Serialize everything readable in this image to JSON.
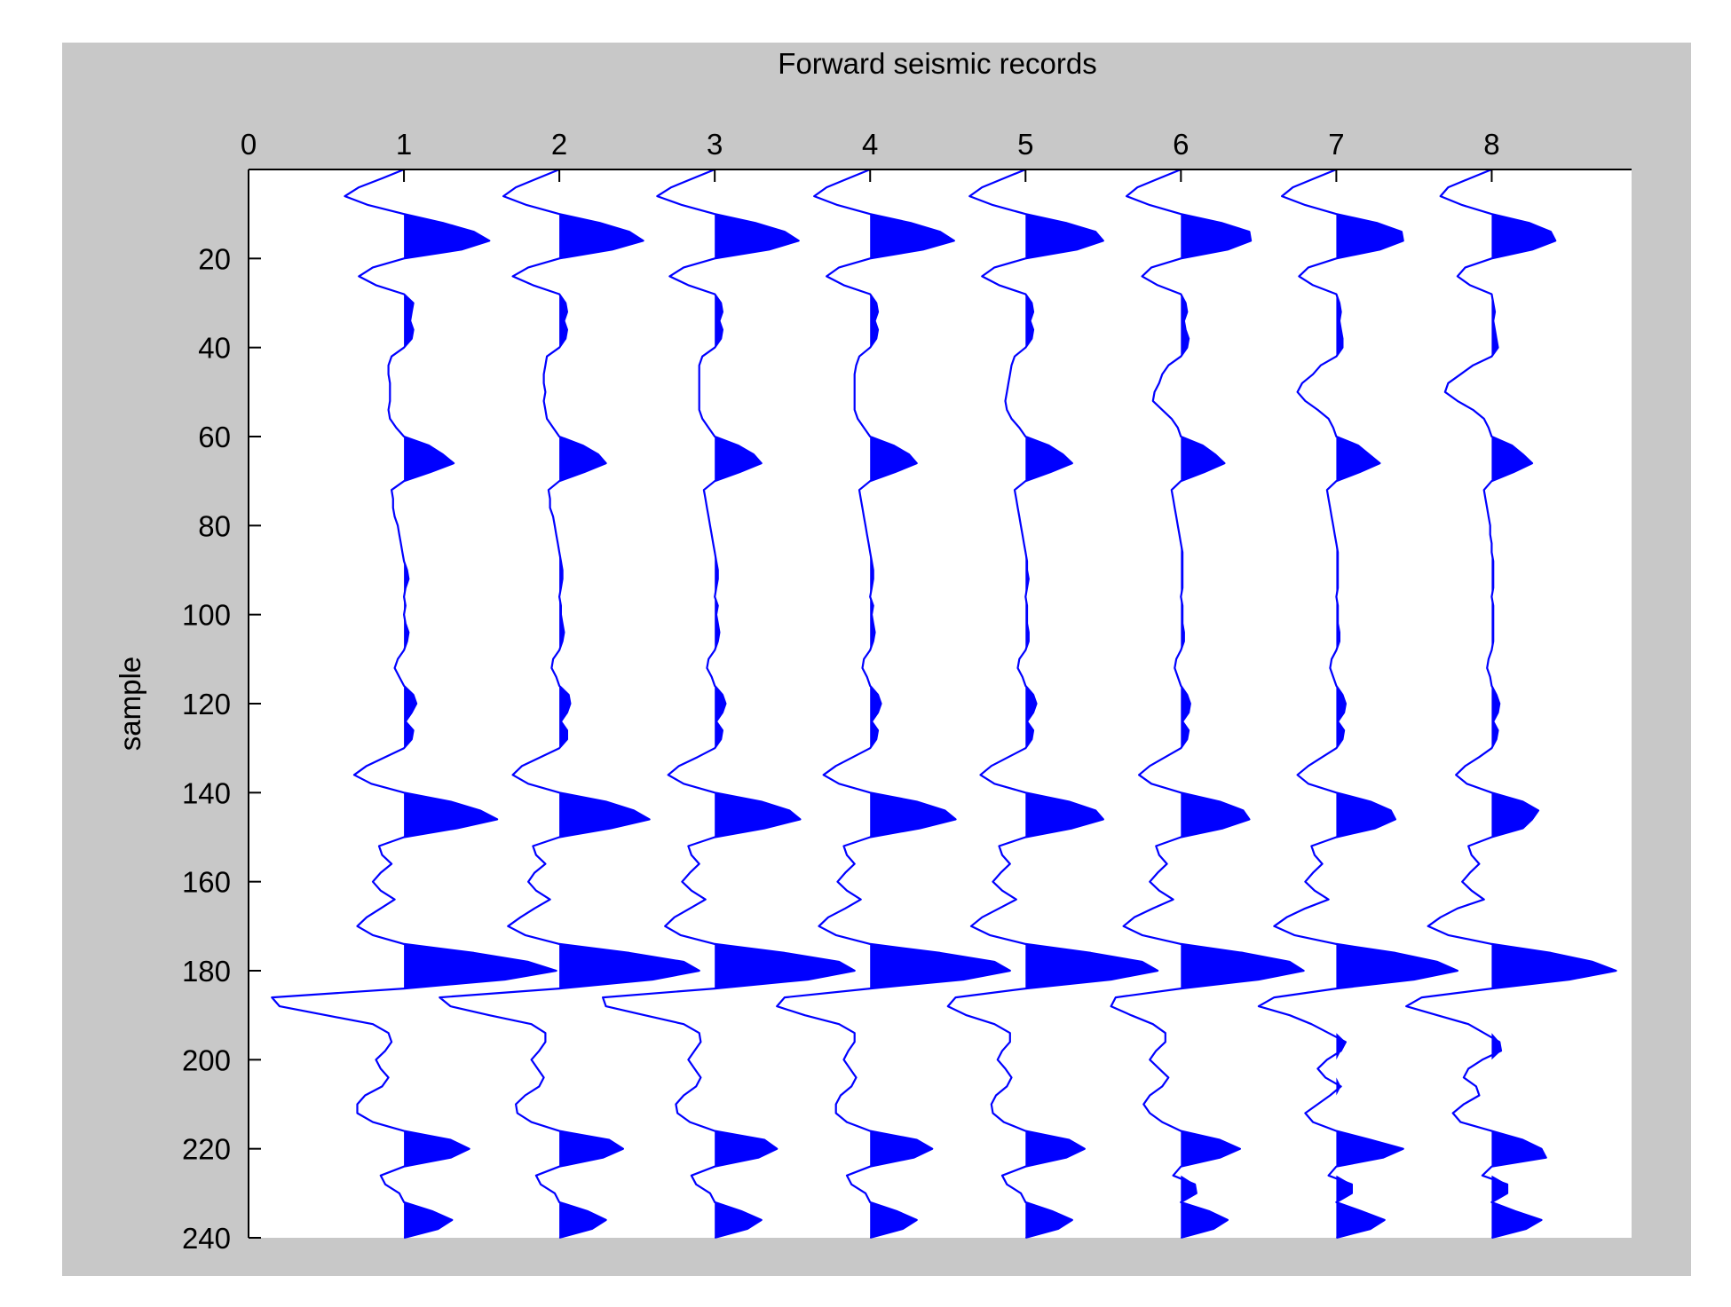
{
  "chart_data": {
    "type": "line",
    "title": "Forward seismic records",
    "xlabel": "",
    "ylabel": "sample",
    "x_axis_position": "top",
    "y_direction": "reversed",
    "xlim": [
      0,
      8.9
    ],
    "ylim": [
      0,
      240
    ],
    "xticks": [
      0,
      1,
      2,
      3,
      4,
      5,
      6,
      7,
      8
    ],
    "yticks": [
      20,
      40,
      60,
      80,
      100,
      120,
      140,
      160,
      180,
      200,
      220,
      240
    ],
    "grid": false,
    "legend": "none",
    "fill": "positive lobes filled (wiggle-variable-area)",
    "colors": {
      "trace": "#0000ff",
      "figure_background": "#c8c8c8",
      "axes_background": "#ffffff",
      "axes": "#000000"
    },
    "trace_offsets": [
      1,
      2,
      3,
      4,
      5,
      6,
      7,
      8
    ],
    "sample_axis": [
      0,
      2,
      4,
      6,
      8,
      10,
      12,
      14,
      16,
      18,
      20,
      22,
      24,
      26,
      28,
      30,
      32,
      34,
      36,
      38,
      40,
      42,
      44,
      46,
      48,
      50,
      52,
      54,
      56,
      58,
      60,
      62,
      64,
      66,
      68,
      70,
      72,
      74,
      76,
      78,
      80,
      82,
      84,
      86,
      88,
      90,
      92,
      94,
      96,
      98,
      100,
      102,
      104,
      106,
      108,
      110,
      112,
      114,
      116,
      118,
      120,
      122,
      124,
      126,
      128,
      130,
      132,
      134,
      136,
      138,
      140,
      142,
      144,
      146,
      148,
      150,
      152,
      154,
      156,
      158,
      160,
      162,
      164,
      166,
      168,
      170,
      172,
      174,
      176,
      178,
      180,
      182,
      184,
      186,
      188,
      190,
      192,
      194,
      196,
      198,
      200,
      202,
      204,
      206,
      208,
      210,
      212,
      214,
      216,
      218,
      220,
      222,
      224,
      226,
      228,
      230,
      232,
      234,
      236,
      238,
      240
    ],
    "series": [
      {
        "values": [
          0,
          -0.14,
          -0.29,
          -0.38,
          -0.23,
          0,
          0.25,
          0.45,
          0.55,
          0.37,
          0,
          -0.2,
          -0.29,
          -0.18,
          0,
          0.06,
          0.05,
          0.04,
          0.06,
          0.05,
          0,
          -0.08,
          -0.1,
          -0.1,
          -0.09,
          -0.09,
          -0.09,
          -0.1,
          -0.09,
          -0.05,
          0,
          0.16,
          0.25,
          0.32,
          0.17,
          0,
          -0.08,
          -0.07,
          -0.07,
          -0.06,
          -0.04,
          -0.03,
          -0.02,
          -0.01,
          0,
          0.02,
          0.03,
          0.01,
          0,
          0.01,
          0,
          0.01,
          0.03,
          0.02,
          0,
          -0.04,
          -0.06,
          -0.03,
          0,
          0.06,
          0.08,
          0.05,
          0.01,
          0.06,
          0.05,
          0,
          -0.12,
          -0.24,
          -0.32,
          -0.21,
          0,
          0.3,
          0.49,
          0.6,
          0.34,
          0,
          -0.16,
          -0.14,
          -0.08,
          -0.15,
          -0.2,
          -0.15,
          -0.06,
          -0.15,
          -0.24,
          -0.3,
          -0.2,
          0,
          0.45,
          0.8,
          0.98,
          0.65,
          0,
          -0.85,
          -0.8,
          -0.5,
          -0.2,
          -0.1,
          -0.08,
          -0.12,
          -0.18,
          -0.15,
          -0.1,
          -0.14,
          -0.25,
          -0.3,
          -0.3,
          -0.2,
          0,
          0.3,
          0.42,
          0.3,
          0,
          -0.15,
          -0.12,
          -0.03,
          0,
          0.18,
          0.31,
          0.22,
          0
        ]
      },
      {
        "values": [
          0,
          -0.14,
          -0.28,
          -0.36,
          -0.21,
          0,
          0.26,
          0.45,
          0.54,
          0.34,
          0,
          -0.2,
          -0.3,
          -0.17,
          0,
          0.04,
          0.05,
          0.03,
          0.05,
          0.04,
          0,
          -0.08,
          -0.09,
          -0.1,
          -0.1,
          -0.09,
          -0.1,
          -0.09,
          -0.08,
          -0.04,
          0,
          0.15,
          0.25,
          0.3,
          0.16,
          0,
          -0.07,
          -0.06,
          -0.06,
          -0.04,
          -0.03,
          -0.02,
          -0.01,
          0,
          0.01,
          0.02,
          0.02,
          0.01,
          0,
          0.01,
          0.01,
          0.02,
          0.03,
          0.02,
          0,
          -0.04,
          -0.05,
          -0.02,
          0,
          0.06,
          0.07,
          0.05,
          0.01,
          0.05,
          0.05,
          0,
          -0.12,
          -0.24,
          -0.3,
          -0.2,
          0,
          0.3,
          0.48,
          0.58,
          0.33,
          0,
          -0.17,
          -0.15,
          -0.09,
          -0.16,
          -0.2,
          -0.15,
          -0.06,
          -0.16,
          -0.25,
          -0.33,
          -0.22,
          0,
          0.45,
          0.8,
          0.9,
          0.6,
          0,
          -0.77,
          -0.7,
          -0.45,
          -0.18,
          -0.09,
          -0.09,
          -0.13,
          -0.18,
          -0.14,
          -0.1,
          -0.13,
          -0.22,
          -0.28,
          -0.27,
          -0.18,
          0,
          0.32,
          0.41,
          0.28,
          0,
          -0.15,
          -0.12,
          -0.03,
          0,
          0.18,
          0.3,
          0.21,
          0
        ]
      },
      {
        "values": [
          0,
          -0.14,
          -0.28,
          -0.37,
          -0.21,
          0,
          0.26,
          0.45,
          0.54,
          0.35,
          0,
          -0.2,
          -0.29,
          -0.17,
          0,
          0.04,
          0.05,
          0.03,
          0.05,
          0.04,
          0,
          -0.08,
          -0.1,
          -0.1,
          -0.1,
          -0.1,
          -0.1,
          -0.1,
          -0.08,
          -0.04,
          0,
          0.15,
          0.25,
          0.3,
          0.16,
          0,
          -0.07,
          -0.06,
          -0.05,
          -0.04,
          -0.03,
          -0.02,
          -0.01,
          0,
          0.01,
          0.02,
          0.02,
          0.01,
          0,
          0.02,
          0.01,
          0.02,
          0.03,
          0.02,
          0,
          -0.04,
          -0.05,
          -0.02,
          0,
          0.05,
          0.07,
          0.05,
          0.01,
          0.05,
          0.04,
          0,
          -0.11,
          -0.23,
          -0.3,
          -0.2,
          0,
          0.3,
          0.48,
          0.55,
          0.32,
          0,
          -0.17,
          -0.15,
          -0.1,
          -0.16,
          -0.21,
          -0.15,
          -0.06,
          -0.16,
          -0.26,
          -0.32,
          -0.22,
          0,
          0.45,
          0.8,
          0.9,
          0.6,
          0,
          -0.72,
          -0.7,
          -0.45,
          -0.2,
          -0.1,
          -0.09,
          -0.13,
          -0.17,
          -0.13,
          -0.09,
          -0.12,
          -0.2,
          -0.25,
          -0.24,
          -0.16,
          0,
          0.32,
          0.4,
          0.28,
          0,
          -0.15,
          -0.12,
          -0.03,
          0,
          0.17,
          0.3,
          0.21,
          0
        ]
      },
      {
        "values": [
          0,
          -0.14,
          -0.28,
          -0.36,
          -0.21,
          0,
          0.26,
          0.45,
          0.54,
          0.34,
          0,
          -0.2,
          -0.28,
          -0.17,
          0,
          0.04,
          0.05,
          0.03,
          0.05,
          0.04,
          0,
          -0.07,
          -0.09,
          -0.1,
          -0.1,
          -0.1,
          -0.1,
          -0.1,
          -0.08,
          -0.04,
          0,
          0.15,
          0.25,
          0.3,
          0.16,
          0,
          -0.07,
          -0.06,
          -0.05,
          -0.04,
          -0.03,
          -0.02,
          -0.01,
          0,
          0.01,
          0.02,
          0.02,
          0.01,
          0,
          0.02,
          0.01,
          0.02,
          0.03,
          0.02,
          0,
          -0.04,
          -0.05,
          -0.02,
          0,
          0.05,
          0.07,
          0.05,
          0.01,
          0.05,
          0.04,
          0,
          -0.11,
          -0.22,
          -0.3,
          -0.2,
          0,
          0.3,
          0.48,
          0.55,
          0.32,
          0,
          -0.17,
          -0.15,
          -0.1,
          -0.16,
          -0.21,
          -0.15,
          -0.06,
          -0.16,
          -0.27,
          -0.33,
          -0.22,
          0,
          0.45,
          0.8,
          0.9,
          0.6,
          0,
          -0.55,
          -0.6,
          -0.42,
          -0.2,
          -0.1,
          -0.1,
          -0.14,
          -0.17,
          -0.13,
          -0.09,
          -0.12,
          -0.19,
          -0.22,
          -0.22,
          -0.15,
          0,
          0.3,
          0.4,
          0.28,
          0,
          -0.15,
          -0.12,
          -0.03,
          0,
          0.17,
          0.3,
          0.21,
          0
        ]
      },
      {
        "values": [
          0,
          -0.14,
          -0.28,
          -0.36,
          -0.21,
          0,
          0.26,
          0.45,
          0.5,
          0.33,
          0,
          -0.2,
          -0.28,
          -0.17,
          0,
          0.04,
          0.05,
          0.03,
          0.05,
          0.04,
          0,
          -0.07,
          -0.09,
          -0.1,
          -0.11,
          -0.12,
          -0.13,
          -0.12,
          -0.09,
          -0.04,
          0,
          0.15,
          0.24,
          0.3,
          0.16,
          0,
          -0.07,
          -0.06,
          -0.05,
          -0.04,
          -0.03,
          -0.02,
          -0.01,
          0,
          0.01,
          0.01,
          0.02,
          0.01,
          0,
          0.01,
          0.01,
          0.01,
          0.02,
          0.02,
          0,
          -0.04,
          -0.05,
          -0.02,
          0,
          0.05,
          0.07,
          0.05,
          0.01,
          0.05,
          0.04,
          0,
          -0.11,
          -0.22,
          -0.29,
          -0.2,
          0,
          0.28,
          0.45,
          0.5,
          0.3,
          0,
          -0.17,
          -0.15,
          -0.1,
          -0.16,
          -0.21,
          -0.15,
          -0.06,
          -0.17,
          -0.28,
          -0.35,
          -0.23,
          0,
          0.42,
          0.75,
          0.85,
          0.55,
          0,
          -0.45,
          -0.5,
          -0.38,
          -0.2,
          -0.1,
          -0.1,
          -0.15,
          -0.18,
          -0.13,
          -0.09,
          -0.12,
          -0.19,
          -0.22,
          -0.21,
          -0.14,
          0,
          0.28,
          0.38,
          0.26,
          0,
          -0.15,
          -0.12,
          -0.03,
          0,
          0.17,
          0.3,
          0.21,
          0
        ]
      },
      {
        "values": [
          0,
          -0.14,
          -0.28,
          -0.35,
          -0.2,
          0,
          0.26,
          0.44,
          0.45,
          0.3,
          0,
          -0.19,
          -0.25,
          -0.15,
          0,
          0.03,
          0.04,
          0.02,
          0.03,
          0.05,
          0.04,
          0,
          -0.08,
          -0.12,
          -0.14,
          -0.17,
          -0.18,
          -0.12,
          -0.06,
          -0.02,
          0,
          0.14,
          0.22,
          0.28,
          0.15,
          0,
          -0.06,
          -0.05,
          -0.04,
          -0.03,
          -0.02,
          -0.01,
          0,
          0.01,
          0.01,
          0.01,
          0.01,
          0.01,
          0,
          0.01,
          0.01,
          0.01,
          0.02,
          0.02,
          0,
          -0.03,
          -0.04,
          -0.02,
          0,
          0.04,
          0.06,
          0.05,
          0.01,
          0.05,
          0.04,
          0,
          -0.1,
          -0.2,
          -0.27,
          -0.19,
          0,
          0.25,
          0.4,
          0.44,
          0.27,
          0,
          -0.16,
          -0.14,
          -0.09,
          -0.15,
          -0.2,
          -0.14,
          -0.05,
          -0.18,
          -0.3,
          -0.37,
          -0.25,
          0,
          0.4,
          0.7,
          0.79,
          0.5,
          0,
          -0.42,
          -0.45,
          -0.32,
          -0.18,
          -0.1,
          -0.1,
          -0.16,
          -0.2,
          -0.14,
          -0.08,
          -0.12,
          -0.2,
          -0.24,
          -0.2,
          -0.12,
          0,
          0.25,
          0.38,
          0.25,
          0,
          -0.05,
          0.09,
          0.1,
          0,
          0.18,
          0.3,
          0.21,
          0
        ]
      },
      {
        "values": [
          0,
          -0.14,
          -0.28,
          -0.35,
          -0.2,
          0,
          0.26,
          0.42,
          0.43,
          0.28,
          0,
          -0.18,
          -0.24,
          -0.15,
          0,
          0.02,
          0.03,
          0.02,
          0.03,
          0.04,
          0.04,
          0,
          -0.1,
          -0.15,
          -0.22,
          -0.25,
          -0.2,
          -0.12,
          -0.05,
          -0.02,
          0,
          0.14,
          0.21,
          0.28,
          0.15,
          0,
          -0.06,
          -0.05,
          -0.04,
          -0.03,
          -0.02,
          -0.01,
          0,
          0.01,
          0.01,
          0.01,
          0.01,
          0.01,
          0,
          0.01,
          0.01,
          0.01,
          0.02,
          0.02,
          0,
          -0.03,
          -0.04,
          -0.02,
          0,
          0.04,
          0.06,
          0.05,
          0.01,
          0.05,
          0.04,
          0,
          -0.09,
          -0.18,
          -0.25,
          -0.18,
          0,
          0.22,
          0.35,
          0.38,
          0.25,
          0,
          -0.16,
          -0.14,
          -0.09,
          -0.15,
          -0.2,
          -0.14,
          -0.05,
          -0.2,
          -0.32,
          -0.4,
          -0.27,
          0,
          0.38,
          0.65,
          0.78,
          0.5,
          0,
          -0.4,
          -0.5,
          -0.3,
          -0.16,
          -0.05,
          0.06,
          0.03,
          -0.06,
          -0.12,
          -0.07,
          0.03,
          -0.04,
          -0.12,
          -0.2,
          -0.15,
          0,
          0.22,
          0.43,
          0.3,
          0,
          -0.05,
          0.1,
          0.1,
          0,
          0.16,
          0.31,
          0.22,
          0
        ]
      },
      {
        "values": [
          0,
          -0.14,
          -0.28,
          -0.33,
          -0.19,
          0,
          0.24,
          0.38,
          0.41,
          0.26,
          0,
          -0.17,
          -0.22,
          -0.14,
          0,
          0.01,
          0.02,
          0.01,
          0.02,
          0.03,
          0.04,
          0,
          -0.12,
          -0.2,
          -0.28,
          -0.3,
          -0.22,
          -0.12,
          -0.05,
          -0.02,
          0,
          0.13,
          0.2,
          0.26,
          0.14,
          0,
          -0.05,
          -0.04,
          -0.03,
          -0.02,
          -0.01,
          -0.01,
          0,
          0,
          0.01,
          0.01,
          0.01,
          0.01,
          0,
          0.01,
          0.01,
          0.01,
          0.01,
          0.01,
          0,
          -0.02,
          -0.03,
          -0.01,
          0,
          0.03,
          0.05,
          0.04,
          0.01,
          0.04,
          0.03,
          0,
          -0.08,
          -0.17,
          -0.23,
          -0.16,
          0,
          0.2,
          0.3,
          0.26,
          0.2,
          0,
          -0.15,
          -0.13,
          -0.08,
          -0.14,
          -0.19,
          -0.13,
          -0.05,
          -0.22,
          -0.33,
          -0.41,
          -0.28,
          0,
          0.38,
          0.65,
          0.8,
          0.5,
          0,
          -0.45,
          -0.55,
          -0.35,
          -0.15,
          -0.05,
          0.05,
          0.06,
          -0.06,
          -0.15,
          -0.18,
          -0.1,
          -0.08,
          -0.18,
          -0.25,
          -0.2,
          0,
          0.2,
          0.32,
          0.35,
          0,
          -0.06,
          0.1,
          0.1,
          0,
          0.15,
          0.32,
          0.22,
          0
        ]
      }
    ]
  }
}
